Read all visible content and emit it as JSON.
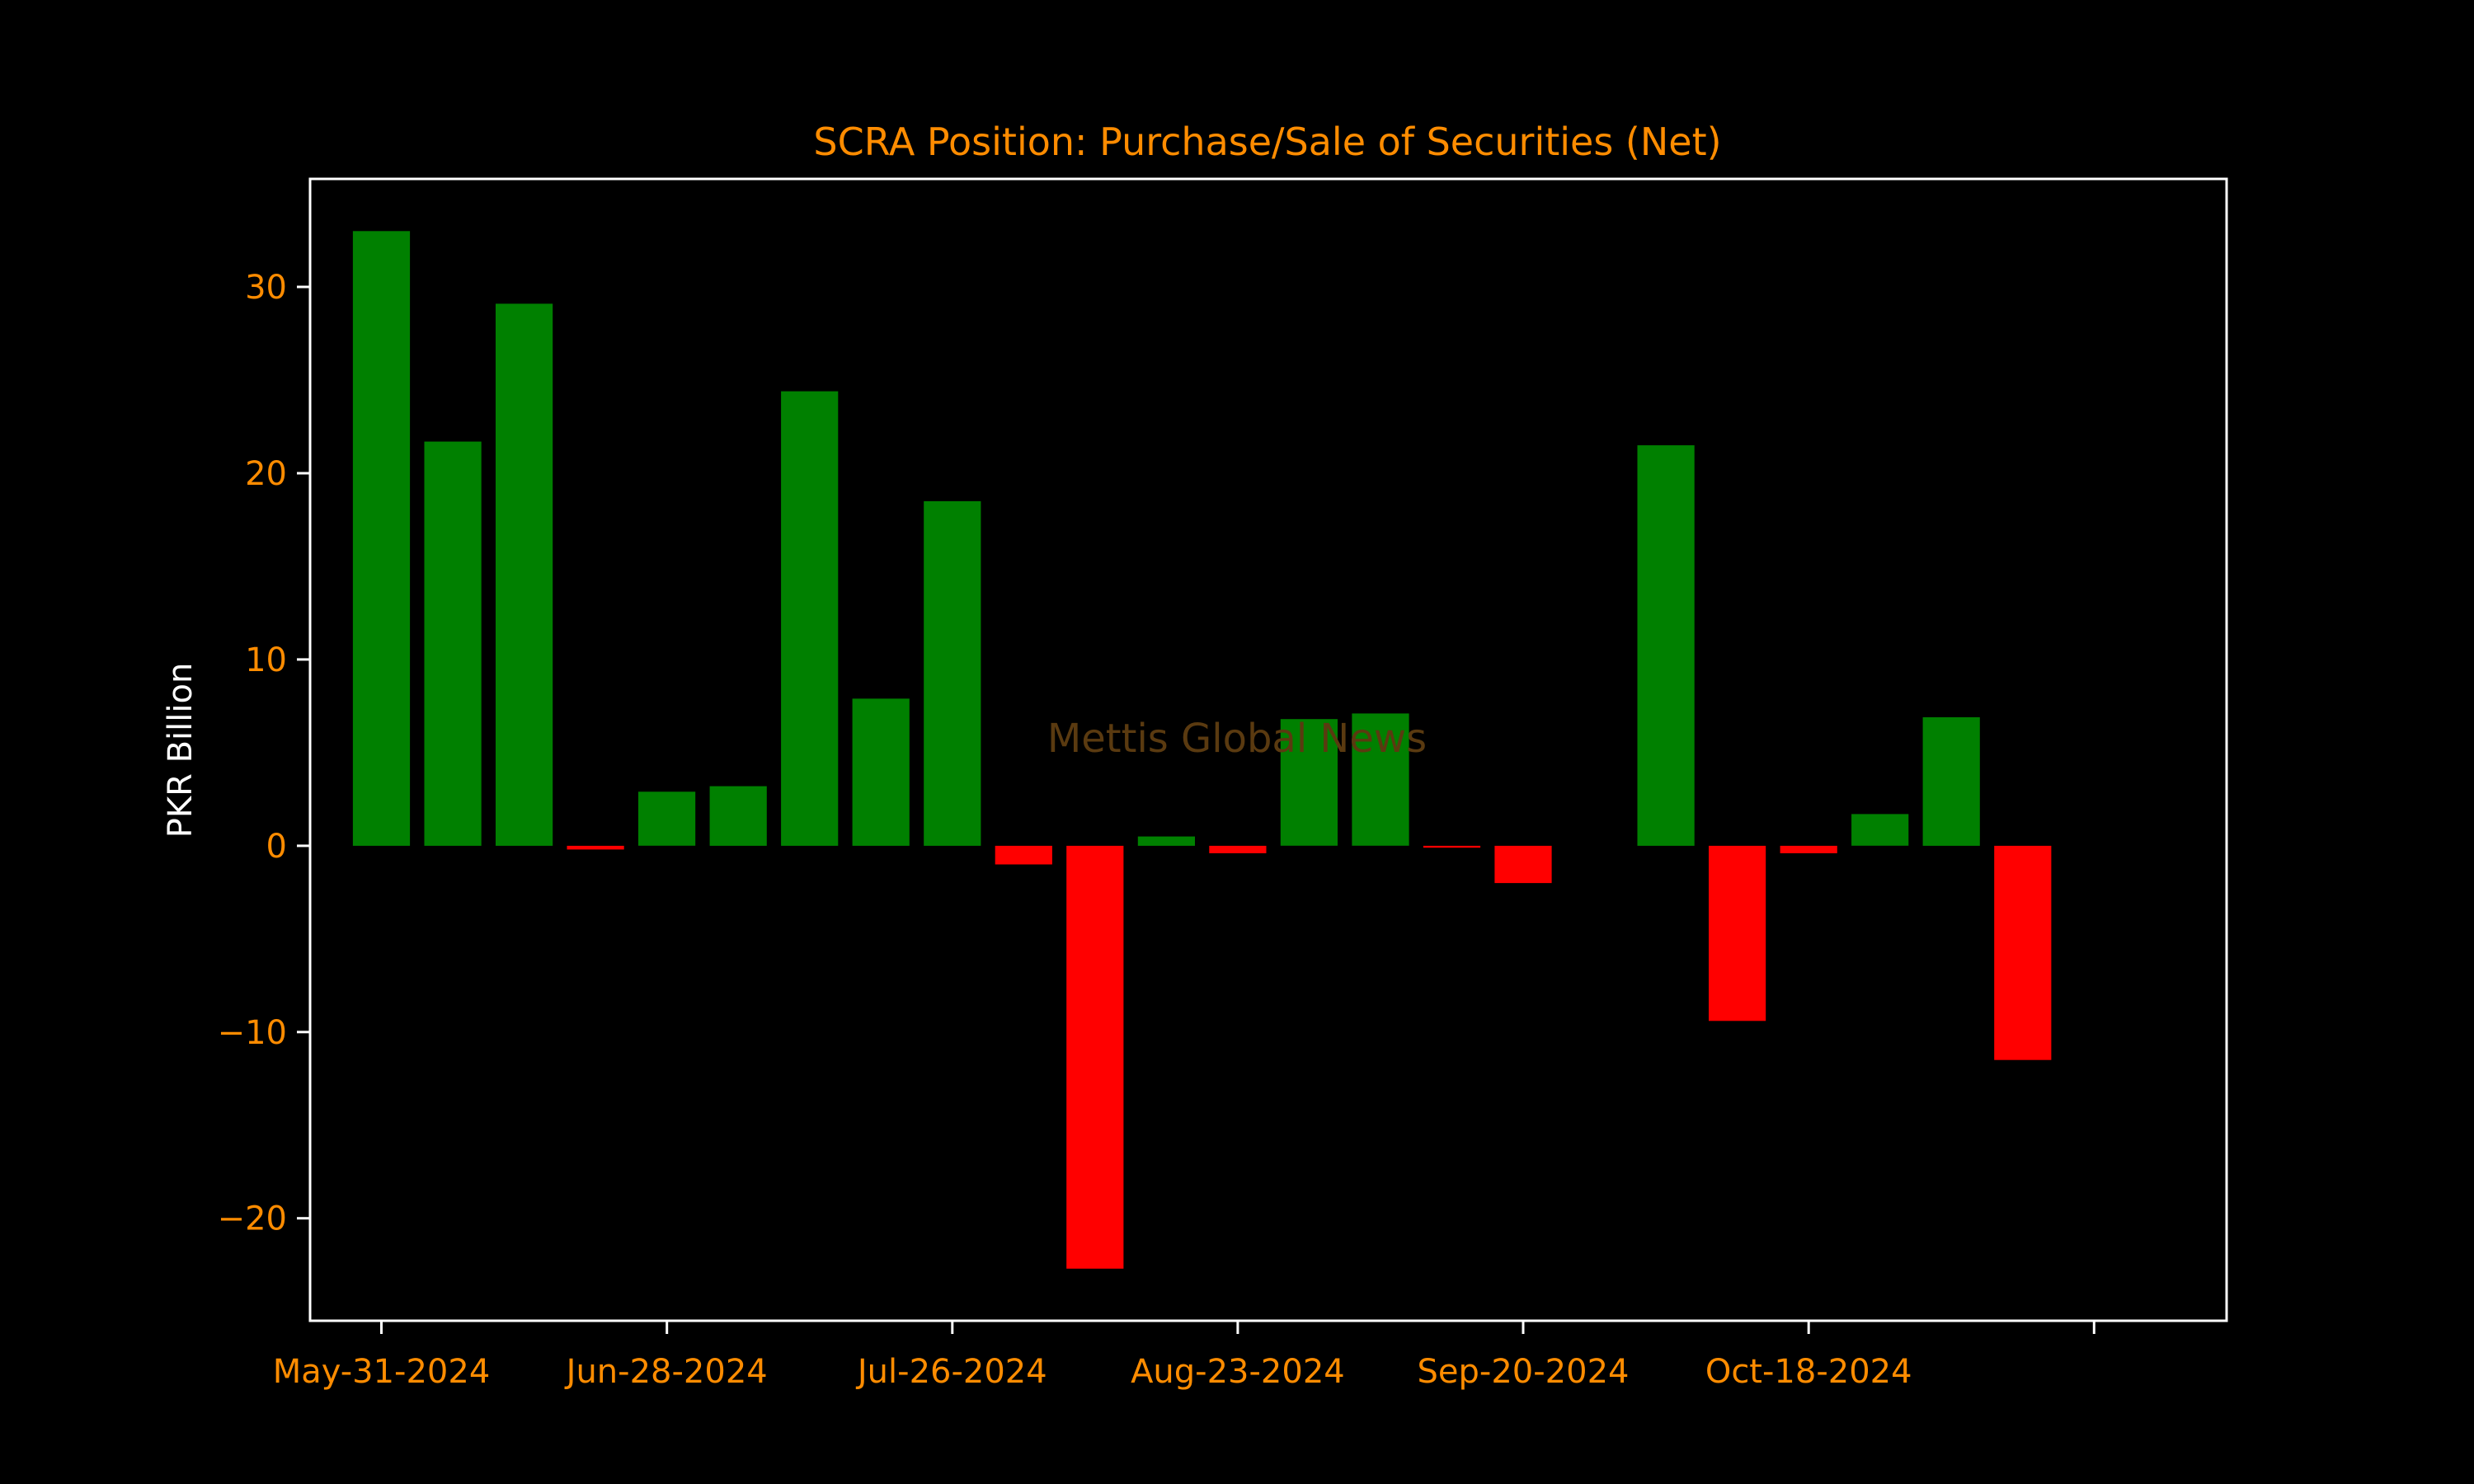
{
  "chart_data": {
    "type": "bar",
    "title": "SCRA Position: Purchase/Sale of Securities (Net)",
    "xlabel": "",
    "ylabel": "PKR Billion",
    "watermark": "Mettis Global News",
    "ylim": [
      -25.5,
      35.8
    ],
    "yticks": [
      -20,
      -10,
      0,
      10,
      20,
      30
    ],
    "ytick_labels": [
      "−20",
      "−10",
      "0",
      "10",
      "20",
      "30"
    ],
    "xlim": [
      "2024-05-24",
      "2024-11-28"
    ],
    "xticks": [
      "2024-05-31",
      "2024-06-28",
      "2024-07-26",
      "2024-08-23",
      "2024-09-20",
      "2024-10-18",
      "2024-11-15"
    ],
    "xtick_labels": [
      "May-31-2024",
      "Jun-28-2024",
      "Jul-26-2024",
      "Aug-23-2024",
      "Sep-20-2024",
      "Oct-18-2024",
      ""
    ],
    "bar_width_days": 5.6,
    "x": [
      "2024-05-31",
      "2024-06-07",
      "2024-06-14",
      "2024-06-21",
      "2024-06-28",
      "2024-07-05",
      "2024-07-12",
      "2024-07-19",
      "2024-07-26",
      "2024-08-02",
      "2024-08-09",
      "2024-08-16",
      "2024-08-23",
      "2024-08-30",
      "2024-09-06",
      "2024-09-13",
      "2024-09-20",
      "2024-09-27",
      "2024-10-04",
      "2024-10-11",
      "2024-10-18",
      "2024-10-25",
      "2024-11-01",
      "2024-11-08"
    ],
    "values": [
      33.0,
      21.7,
      29.1,
      -0.2,
      2.9,
      3.2,
      24.4,
      7.9,
      18.5,
      -1.0,
      -22.7,
      0.5,
      -0.4,
      6.8,
      7.1,
      -0.1,
      -2.0,
      0.0,
      21.5,
      -9.4,
      -0.4,
      1.7,
      6.9,
      -11.5
    ],
    "positive_color": "#008000",
    "negative_color": "#ff0000",
    "accent_color": "#ff8c00",
    "axis_color": "#ffffff",
    "grid": false,
    "legend": "none"
  }
}
